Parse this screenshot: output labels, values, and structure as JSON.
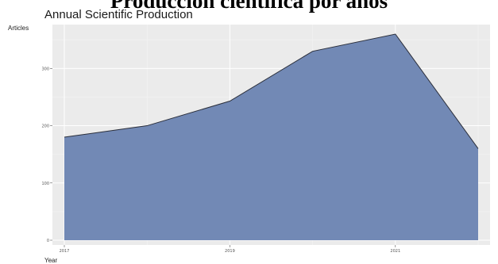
{
  "page": {
    "heading": "Producción científica por años"
  },
  "chart_data": {
    "type": "area",
    "title": "Annual Scientific Production",
    "xlabel": "Year",
    "ylabel": "Articles",
    "x": [
      2017,
      2018,
      2019,
      2020,
      2021,
      2022
    ],
    "values": [
      180,
      200,
      243,
      330,
      360,
      160
    ],
    "xlim": [
      2017,
      2022
    ],
    "ylim": [
      0,
      360
    ],
    "xticks": [
      "2017",
      "2019",
      "2021"
    ],
    "yticks": [
      "0",
      "100",
      "200",
      "300"
    ],
    "grid": true,
    "colors": {
      "panel_background": "#ebebeb",
      "grid_major": "#ffffff",
      "grid_minor": "#f4f4f4",
      "area_fill": "#7289b5",
      "area_line": "#2b2f3b"
    }
  }
}
